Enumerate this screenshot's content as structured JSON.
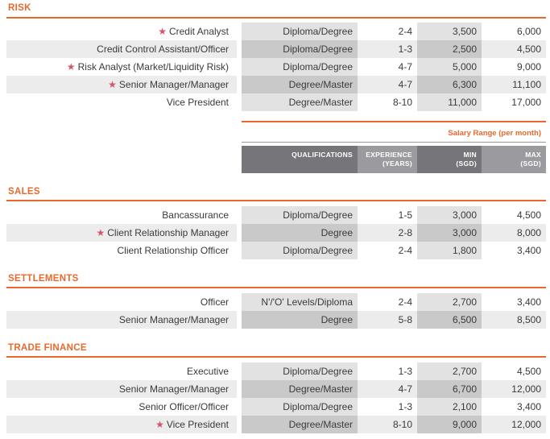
{
  "sections": {
    "risk": {
      "title": "RISK",
      "rows": [
        {
          "role": "Credit Analyst",
          "qual": "Diploma/Degree",
          "exp": "2-4",
          "min": "3,500",
          "max": "6,000"
        },
        {
          "role": "Credit Control Assistant/Officer",
          "qual": "Diploma/Degree",
          "exp": "1-3",
          "min": "2,500",
          "max": "4,500"
        },
        {
          "role": "Risk Analyst (Market/Liquidity Risk)",
          "qual": "Diploma/Degree",
          "exp": "4-7",
          "min": "5,000",
          "max": "9,000"
        },
        {
          "role": "Senior Manager/Manager",
          "qual": "Degree/Master",
          "exp": "4-7",
          "min": "6,300",
          "max": "11,100"
        },
        {
          "role": "Vice President",
          "qual": "Degree/Master",
          "exp": "8-10",
          "min": "11,000",
          "max": "17,000"
        }
      ]
    },
    "sales": {
      "title": "SALES",
      "rows": [
        {
          "role": "Bancassurance",
          "qual": "Diploma/Degree",
          "exp": "1-5",
          "min": "3,000",
          "max": "4,500"
        },
        {
          "role": "Client Relationship Manager",
          "qual": "Degree",
          "exp": "2-8",
          "min": "3,000",
          "max": "8,000"
        },
        {
          "role": "Client Relationship Officer",
          "qual": "Diploma/Degree",
          "exp": "2-4",
          "min": "1,800",
          "max": "3,400"
        }
      ]
    },
    "settlements": {
      "title": "SETTLEMENTS",
      "rows": [
        {
          "role": "Officer",
          "qual": "N'/'O' Levels/Diploma",
          "exp": "2-4",
          "min": "2,700",
          "max": "3,400"
        },
        {
          "role": "Senior Manager/Manager",
          "qual": "Degree",
          "exp": "5-8",
          "min": "6,500",
          "max": "8,500"
        }
      ]
    },
    "trade_finance": {
      "title": "TRADE FINANCE",
      "rows": [
        {
          "role": "Executive",
          "qual": "Diploma/Degree",
          "exp": "1-3",
          "min": "2,700",
          "max": "4,500"
        },
        {
          "role": "Senior Manager/Manager",
          "qual": "Degree/Master",
          "exp": "4-7",
          "min": "6,700",
          "max": "12,000"
        },
        {
          "role": "Senior Officer/Officer",
          "qual": "Diploma/Degree",
          "exp": "1-3",
          "min": "2,100",
          "max": "3,400"
        },
        {
          "role": "Vice President",
          "qual": "Degree/Master",
          "exp": "8-10",
          "min": "9,000",
          "max": "12,000"
        }
      ]
    }
  },
  "header": {
    "salary_range": "Salary Range (per month)",
    "qualifications": "QUALIFICATIONS",
    "experience_line1": "EXPERIENCE",
    "experience_line2": "(YEARS)",
    "min_line1": "MIN",
    "min_line2": "(SGD)",
    "max_line1": "MAX",
    "max_line2": "(SGD)"
  },
  "icons": {
    "star": "star-icon"
  },
  "colors": {
    "accent": "#e8692c",
    "star": "#d4566d",
    "header_dark": "#76767a",
    "header_mid": "#9b9b9f"
  }
}
